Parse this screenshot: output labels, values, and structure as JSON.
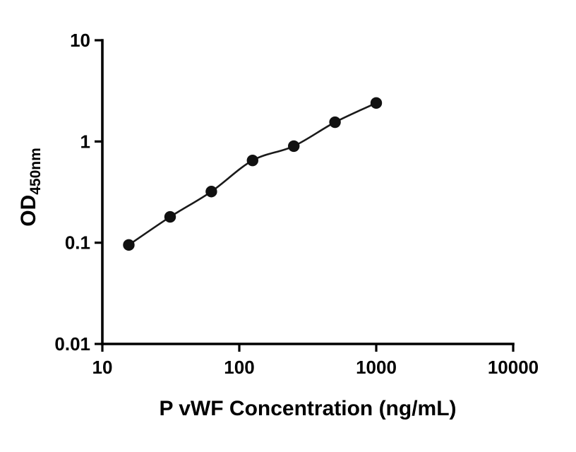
{
  "chart_data": {
    "type": "scatter",
    "x": [
      15.6,
      31.25,
      62.5,
      125,
      250,
      500,
      1000
    ],
    "y": [
      0.095,
      0.18,
      0.32,
      0.65,
      0.9,
      1.55,
      2.4
    ],
    "xlabel": "P vWF Concentration (ng/mL)",
    "ylabel_main": "OD",
    "ylabel_sub": "450nm",
    "xscale": "log",
    "yscale": "log",
    "xlim": [
      10,
      10000
    ],
    "ylim": [
      0.01,
      10
    ],
    "x_ticks": [
      {
        "value": 10,
        "label": "10"
      },
      {
        "value": 100,
        "label": "100"
      },
      {
        "value": 1000,
        "label": "1000"
      },
      {
        "value": 10000,
        "label": "10000"
      }
    ],
    "y_ticks": [
      {
        "value": 10,
        "label": "10"
      },
      {
        "value": 1,
        "label": "1"
      },
      {
        "value": 0.1,
        "label": "0.1"
      },
      {
        "value": 0.01,
        "label": "0.01"
      }
    ],
    "grid": false,
    "legend": null,
    "marker_color": "#111111",
    "line_color": "#1a1a1a",
    "connector": "smooth-line-through-points"
  }
}
